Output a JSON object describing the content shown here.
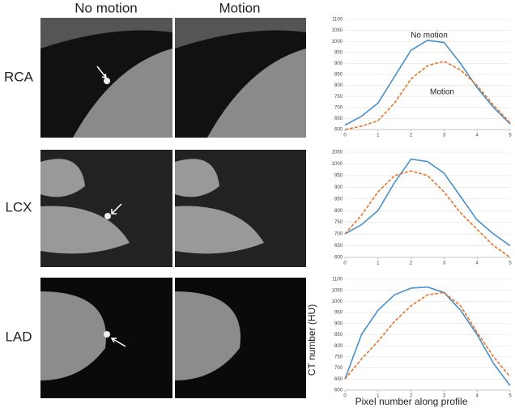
{
  "column_headers": [
    "No motion",
    "Motion"
  ],
  "row_labels": [
    "RCA",
    "LCX",
    "LAD"
  ],
  "y_axis_label": "CT number (HU)",
  "x_axis_label": "Pixel number along profile",
  "chart_data": [
    {
      "type": "line",
      "x": [
        0,
        0.5,
        1,
        1.5,
        2,
        2.5,
        3,
        3.5,
        4,
        4.5,
        5
      ],
      "series": [
        {
          "color": "#4a90c8",
          "values": [
            620,
            660,
            720,
            840,
            960,
            1005,
            995,
            900,
            790,
            700,
            625
          ]
        },
        {
          "color": "#e8732a",
          "dashed": true,
          "values": [
            600,
            615,
            640,
            720,
            830,
            890,
            910,
            870,
            800,
            710,
            630
          ]
        }
      ],
      "xlim": [
        0,
        5
      ],
      "xticks": [
        0,
        1,
        2,
        3,
        4,
        5
      ],
      "ylim": [
        600,
        1100
      ],
      "yticks": [
        600,
        650,
        700,
        750,
        800,
        850,
        900,
        950,
        1000,
        1050,
        1100
      ],
      "grid": true,
      "annotations": [
        "No motion",
        "Motion"
      ]
    },
    {
      "type": "line",
      "x": [
        0,
        0.5,
        1,
        1.5,
        2,
        2.5,
        3,
        3.5,
        4,
        4.5,
        5
      ],
      "series": [
        {
          "color": "#4a90c8",
          "values": [
            700,
            740,
            800,
            920,
            1020,
            1010,
            960,
            860,
            760,
            700,
            650
          ]
        },
        {
          "color": "#e8732a",
          "dashed": true,
          "values": [
            700,
            780,
            880,
            950,
            970,
            950,
            880,
            790,
            720,
            650,
            600
          ]
        }
      ],
      "xlim": [
        0,
        5
      ],
      "xticks": [
        0,
        1,
        2,
        3,
        4,
        5
      ],
      "ylim": [
        600,
        1050
      ],
      "yticks": [
        600,
        650,
        700,
        750,
        800,
        850,
        900,
        950,
        1000,
        1050
      ],
      "grid": true
    },
    {
      "type": "line",
      "x": [
        0,
        0.5,
        1,
        1.5,
        2,
        2.5,
        3,
        3.5,
        4,
        4.5,
        5
      ],
      "series": [
        {
          "color": "#4a90c8",
          "values": [
            650,
            850,
            960,
            1030,
            1060,
            1065,
            1040,
            960,
            850,
            720,
            620
          ]
        },
        {
          "color": "#e8732a",
          "dashed": true,
          "values": [
            650,
            740,
            820,
            910,
            980,
            1030,
            1040,
            980,
            860,
            750,
            660
          ]
        }
      ],
      "xlim": [
        0,
        5
      ],
      "xticks": [
        0,
        1,
        2,
        3,
        4,
        5
      ],
      "ylim": [
        600,
        1100
      ],
      "yticks": [
        600,
        650,
        700,
        750,
        800,
        850,
        900,
        950,
        1000,
        1050,
        1100
      ],
      "grid": true
    }
  ]
}
